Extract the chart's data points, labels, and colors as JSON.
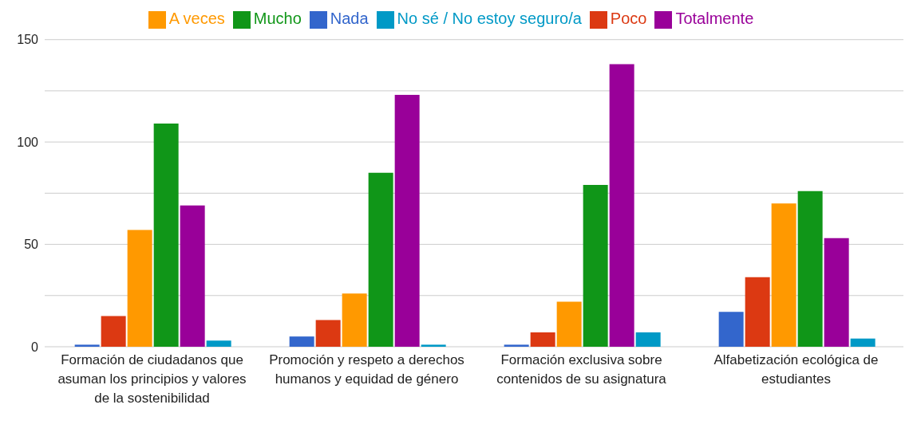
{
  "chart_data": {
    "type": "bar",
    "categories": [
      "Formación de ciudadanos que asuman los principios y valores de la sostenibilidad",
      "Promoción y respeto a derechos humanos y equidad de género",
      "Formación exclusiva sobre contenidos de su asignatura",
      "Alfabetización ecológica de estudiantes"
    ],
    "series": [
      {
        "name": "Nada",
        "color": "#3366cc",
        "values": [
          1,
          5,
          1,
          17
        ]
      },
      {
        "name": "Poco",
        "color": "#dc3912",
        "values": [
          15,
          13,
          7,
          34
        ]
      },
      {
        "name": "A veces",
        "color": "#ff9900",
        "values": [
          57,
          26,
          22,
          70
        ]
      },
      {
        "name": "Mucho",
        "color": "#109618",
        "values": [
          109,
          85,
          79,
          76
        ]
      },
      {
        "name": "Totalmente",
        "color": "#990099",
        "values": [
          69,
          123,
          138,
          53
        ]
      },
      {
        "name": "No sé / No estoy seguro/a",
        "color": "#0099c6",
        "values": [
          3,
          1,
          7,
          4
        ]
      }
    ],
    "ylim": [
      0,
      150
    ],
    "yticks": [
      0,
      {
        "value": 25,
        "label": null
      },
      50,
      {
        "value": 75,
        "label": null
      },
      100,
      {
        "value": 125,
        "label": null
      },
      150
    ],
    "grid": "y",
    "legend": "top"
  }
}
